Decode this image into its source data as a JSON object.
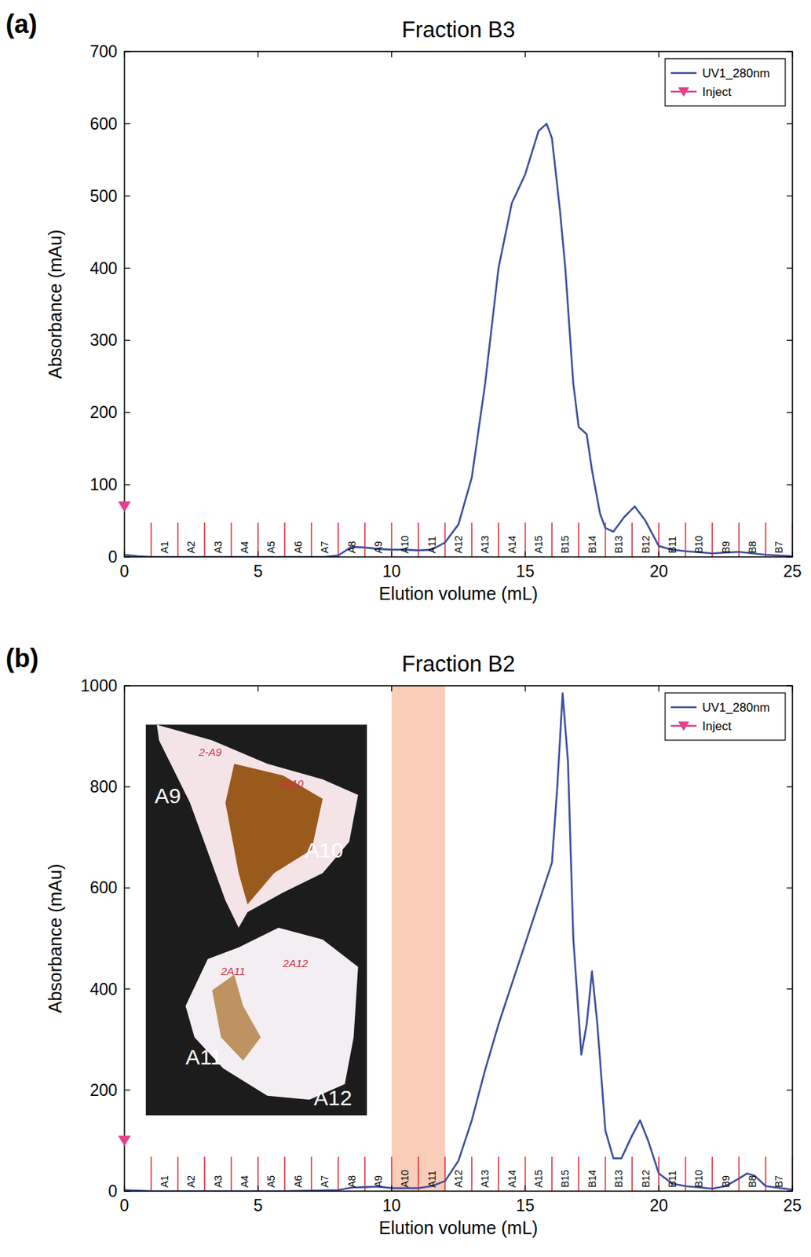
{
  "chart_data": [
    {
      "type": "line",
      "panel_label": "(a)",
      "title": "Fraction B3",
      "x_label": "Elution volume (mL)",
      "y_label": "Absorbance (mAu)",
      "xlim": [
        0,
        25
      ],
      "xticks": [
        0,
        5,
        10,
        15,
        20,
        25
      ],
      "ylim": [
        0,
        700
      ],
      "yticks": [
        0,
        100,
        200,
        300,
        400,
        500,
        600,
        700
      ],
      "grid": false,
      "legend": "upper right",
      "series": [
        {
          "name": "UV1_280nm",
          "color": "#3d4f9f",
          "line_style": "solid",
          "x": [
            0,
            0.5,
            1,
            2,
            4,
            6,
            7.5,
            8,
            8.5,
            9,
            9.5,
            10,
            10.5,
            11,
            11.5,
            12,
            12.5,
            13,
            13.5,
            14,
            14.5,
            15,
            15.5,
            15.8,
            16,
            16.3,
            16.5,
            16.8,
            17,
            17.3,
            17.5,
            17.8,
            18,
            18.3,
            18.7,
            19.1,
            19.5,
            20,
            20.5,
            21,
            22,
            23,
            24,
            25
          ],
          "values": [
            3,
            1,
            0,
            0,
            0,
            0,
            0,
            2,
            14,
            13,
            11,
            10,
            10,
            9,
            10,
            20,
            45,
            110,
            240,
            400,
            490,
            530,
            590,
            600,
            580,
            480,
            400,
            240,
            180,
            170,
            120,
            60,
            40,
            35,
            55,
            70,
            50,
            15,
            10,
            8,
            5,
            7,
            3,
            1
          ]
        },
        {
          "name": "Inject",
          "color": "#e2428c",
          "type": "scatter",
          "marker": "triangle",
          "x": [
            0
          ],
          "values": [
            70
          ]
        }
      ],
      "fractions": {
        "labels": [
          "A1",
          "A2",
          "A3",
          "A4",
          "A5",
          "A6",
          "A7",
          "A8",
          "A9",
          "A10",
          "A11",
          "A12",
          "A13",
          "A14",
          "A15",
          "B15",
          "B14",
          "B13",
          "B12",
          "B11",
          "B10",
          "B9",
          "B8",
          "B7"
        ],
        "edges": [
          1,
          2,
          3,
          4,
          5,
          6,
          7,
          8,
          9,
          10,
          11,
          12,
          13,
          14,
          15,
          16,
          17,
          18,
          19,
          20,
          21,
          22,
          23,
          24,
          25
        ],
        "color": "#e0303a"
      }
    },
    {
      "type": "line",
      "panel_label": "(b)",
      "title": "Fraction B2",
      "x_label": "Elution volume (mL)",
      "y_label": "Absorbance (mAu)",
      "xlim": [
        0,
        25
      ],
      "xticks": [
        0,
        5,
        10,
        15,
        20,
        25
      ],
      "ylim": [
        0,
        1000
      ],
      "yticks": [
        0,
        200,
        400,
        600,
        800,
        1000
      ],
      "grid": false,
      "legend": "upper right",
      "highlight": {
        "range": [
          10,
          12
        ],
        "color": "#f9cdb8"
      },
      "series": [
        {
          "name": "UV1_280nm",
          "color": "#3d4f9f",
          "line_style": "solid",
          "x": [
            0,
            0.5,
            1,
            2,
            4,
            6,
            8,
            8.5,
            9,
            9.5,
            10,
            11,
            11.5,
            12,
            12.5,
            13,
            13.5,
            14,
            14.5,
            15,
            15.5,
            16,
            16.2,
            16.4,
            16.6,
            16.8,
            17.1,
            17.3,
            17.5,
            17.7,
            18,
            18.3,
            18.6,
            19,
            19.3,
            19.6,
            20,
            20.5,
            21,
            22,
            22.5,
            23,
            23.3,
            23.6,
            24,
            25
          ],
          "values": [
            2,
            1,
            0,
            0,
            0,
            0,
            2,
            7,
            8,
            9,
            6,
            6,
            10,
            20,
            60,
            140,
            240,
            330,
            410,
            490,
            570,
            650,
            800,
            985,
            850,
            500,
            270,
            330,
            435,
            330,
            120,
            65,
            65,
            110,
            140,
            100,
            35,
            15,
            10,
            5,
            10,
            25,
            35,
            30,
            10,
            3
          ]
        },
        {
          "name": "Inject",
          "color": "#e2428c",
          "type": "scatter",
          "marker": "triangle",
          "x": [
            0
          ],
          "values": [
            100
          ]
        }
      ],
      "fractions": {
        "labels": [
          "A1",
          "A2",
          "A3",
          "A4",
          "A5",
          "A6",
          "A7",
          "A8",
          "A9",
          "A10",
          "A11",
          "A12",
          "A13",
          "A14",
          "A15",
          "B15",
          "B14",
          "B13",
          "B12",
          "B11",
          "B10",
          "B9",
          "B8",
          "B7"
        ],
        "edges": [
          1,
          2,
          3,
          4,
          5,
          6,
          7,
          8,
          9,
          10,
          11,
          12,
          13,
          14,
          15,
          16,
          17,
          18,
          19,
          20,
          21,
          22,
          23,
          24,
          25
        ],
        "color": "#e0303a"
      },
      "inset": {
        "labels": [
          "A9",
          "A10",
          "A11",
          "A12"
        ],
        "handwritten": [
          "2-A9",
          "2A10",
          "2A11",
          "2A12"
        ]
      }
    }
  ]
}
